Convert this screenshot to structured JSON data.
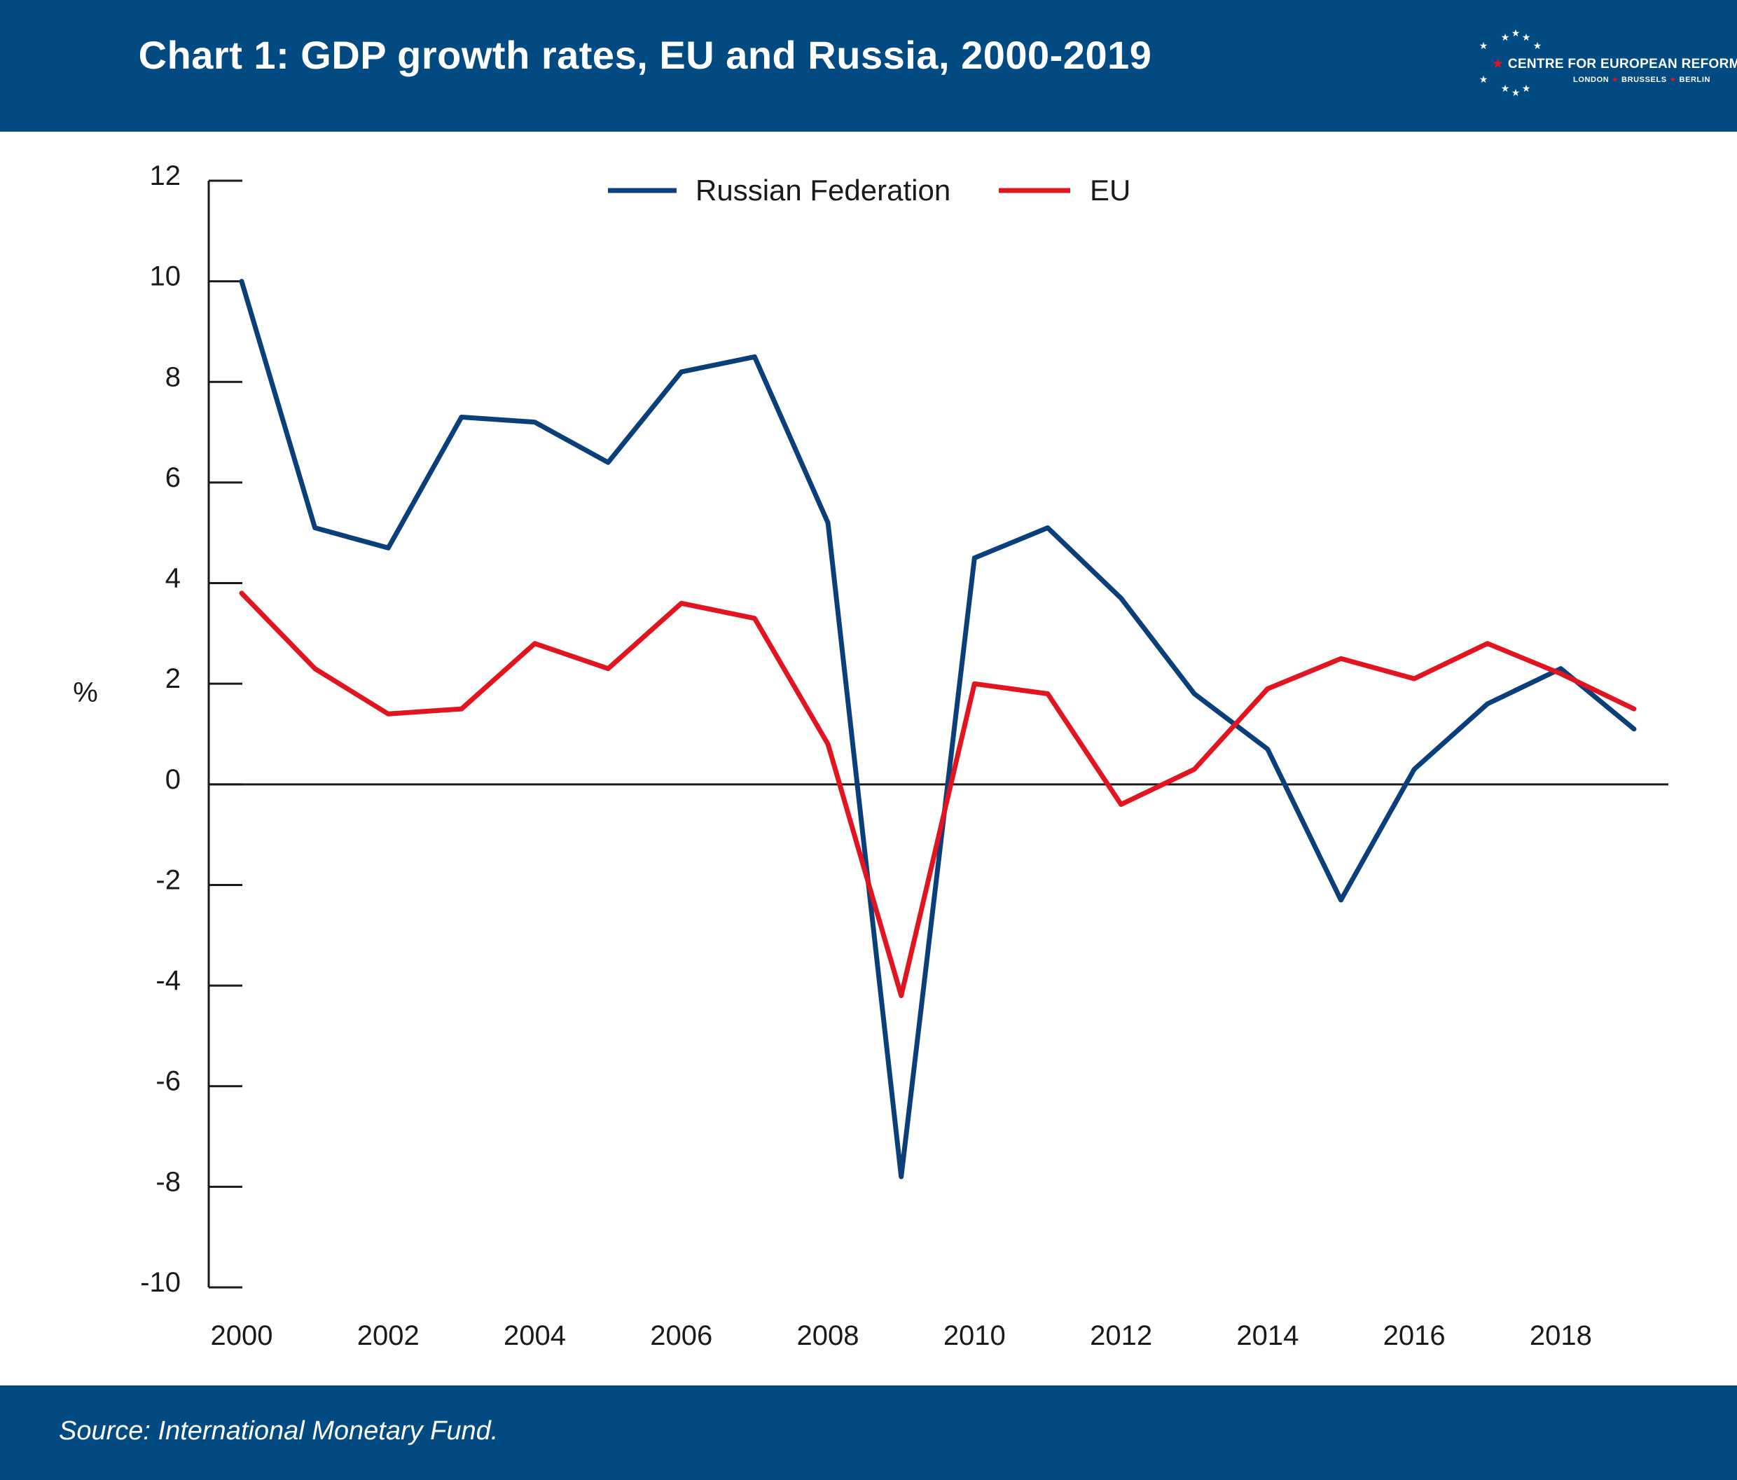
{
  "header": {
    "title": "Chart 1: GDP growth rates, EU and Russia, 2000-2019"
  },
  "logo": {
    "name": "CENTRE FOR EUROPEAN REFORM",
    "cities": [
      "LONDON",
      "BRUSSELS",
      "BERLIN"
    ],
    "colors": {
      "star_accent": "#e1141f",
      "stars": "#ffffff"
    }
  },
  "footer": {
    "source": "Source: International Monetary Fund."
  },
  "colors": {
    "brand_blue": "#024a82",
    "russia": "#0b3f7a",
    "eu": "#e1141f"
  },
  "chart_data": {
    "type": "line",
    "title": "Chart 1: GDP growth rates, EU and Russia, 2000-2019",
    "xlabel": "",
    "ylabel": "%",
    "x": [
      2000,
      2001,
      2002,
      2003,
      2004,
      2005,
      2006,
      2007,
      2008,
      2009,
      2010,
      2011,
      2012,
      2013,
      2014,
      2015,
      2016,
      2017,
      2018,
      2019
    ],
    "xlim": [
      2000,
      2019
    ],
    "ylim": [
      -10,
      12
    ],
    "x_ticks": [
      "2000",
      "2002",
      "2004",
      "2006",
      "2008",
      "2010",
      "2012",
      "2014",
      "2016",
      "2018"
    ],
    "y_ticks": [
      "12",
      "10",
      "8",
      "6",
      "4",
      "2",
      "0",
      "-2",
      "-4",
      "-6",
      "-8",
      "-10"
    ],
    "grid": false,
    "zero_line": true,
    "legend_position": "top-center",
    "series": [
      {
        "name": "Russian Federation",
        "color": "#0b3f7a",
        "values": [
          10.0,
          5.1,
          4.7,
          7.3,
          7.2,
          6.4,
          8.2,
          8.5,
          5.2,
          -7.8,
          4.5,
          5.1,
          3.7,
          1.8,
          0.7,
          -2.3,
          0.3,
          1.6,
          2.3,
          1.1
        ]
      },
      {
        "name": "EU",
        "color": "#e1141f",
        "values": [
          3.8,
          2.3,
          1.4,
          1.5,
          2.8,
          2.3,
          3.6,
          3.3,
          0.8,
          -4.2,
          2.0,
          1.8,
          -0.4,
          0.3,
          1.9,
          2.5,
          2.1,
          2.8,
          2.2,
          1.5
        ]
      }
    ]
  }
}
